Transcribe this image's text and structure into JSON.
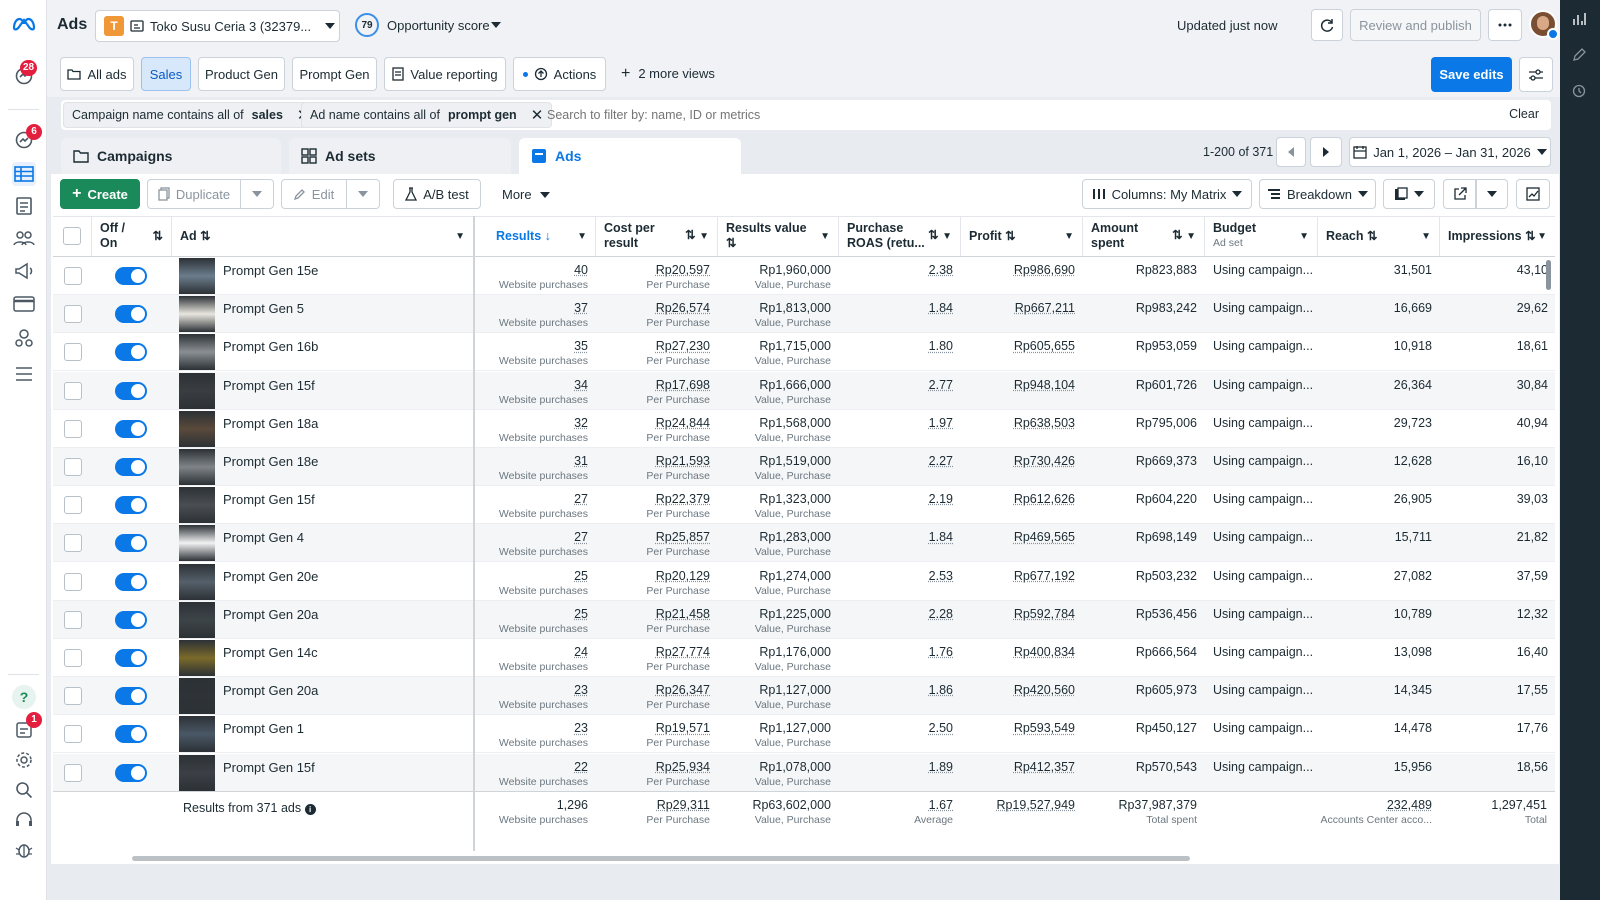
{
  "app": {
    "title": "Ads",
    "account": "Toko Susu Ceria 3 (32379...",
    "account_initial": "T",
    "opportunity_score": "79",
    "opportunity_label": "Opportunity score",
    "updated": "Updated just now",
    "review_label": "Review and publish"
  },
  "leftnav": {
    "notif_badge": "28",
    "msg_badge": "6",
    "bottom_badge": "1"
  },
  "views": {
    "items": [
      "All ads",
      "Sales",
      "Product Gen",
      "Prompt Gen",
      "Value reporting",
      "Actions"
    ],
    "more": "2 more views",
    "save": "Save edits"
  },
  "filters": {
    "chip1_prefix": "Campaign name contains all of",
    "chip1_value": "sales",
    "chip2_prefix": "Ad name contains all of",
    "chip2_value": "prompt gen",
    "search_placeholder": "Search to filter by: name, ID or metrics",
    "clear": "Clear"
  },
  "tabs": {
    "campaigns": "Campaigns",
    "adsets": "Ad sets",
    "ads": "Ads"
  },
  "pager": {
    "range": "1-200 of 371",
    "dates": "Jan 1, 2026 – Jan 31, 2026"
  },
  "toolbar": {
    "create": "Create",
    "duplicate": "Duplicate",
    "edit": "Edit",
    "abtest": "A/B test",
    "more": "More",
    "columns": "Columns: My Matrix",
    "breakdown": "Breakdown"
  },
  "columns": {
    "offon": "Off / On",
    "ad": "Ad",
    "results": "Results",
    "cpr": "Cost per result",
    "value": "Results value",
    "roas": "Purchase ROAS (retu...",
    "profit": "Profit",
    "spent": "Amount spent",
    "budget": "Budget",
    "budget_sub": "Ad set",
    "reach": "Reach",
    "impressions": "Impressions"
  },
  "subs": {
    "results": "Website purchases",
    "cpr": "Per Purchase",
    "value": "Value, Purchase"
  },
  "rows": [
    {
      "name": "Prompt Gen 15e",
      "results": "40",
      "cpr": "Rp20,597",
      "value": "Rp1,960,000",
      "roas": "2.38",
      "profit": "Rp986,690",
      "spent": "Rp823,883",
      "budget": "Using campaign...",
      "reach": "31,501",
      "impressions": "43,10"
    },
    {
      "name": "Prompt Gen 5",
      "results": "37",
      "cpr": "Rp26,574",
      "value": "Rp1,813,000",
      "roas": "1.84",
      "profit": "Rp667,211",
      "spent": "Rp983,242",
      "budget": "Using campaign...",
      "reach": "16,669",
      "impressions": "29,62"
    },
    {
      "name": "Prompt Gen 16b",
      "results": "35",
      "cpr": "Rp27,230",
      "value": "Rp1,715,000",
      "roas": "1.80",
      "profit": "Rp605,655",
      "spent": "Rp953,059",
      "budget": "Using campaign...",
      "reach": "10,918",
      "impressions": "18,61"
    },
    {
      "name": "Prompt Gen 15f",
      "results": "34",
      "cpr": "Rp17,698",
      "value": "Rp1,666,000",
      "roas": "2.77",
      "profit": "Rp948,104",
      "spent": "Rp601,726",
      "budget": "Using campaign...",
      "reach": "26,364",
      "impressions": "30,84"
    },
    {
      "name": "Prompt Gen 18a",
      "results": "32",
      "cpr": "Rp24,844",
      "value": "Rp1,568,000",
      "roas": "1.97",
      "profit": "Rp638,503",
      "spent": "Rp795,006",
      "budget": "Using campaign...",
      "reach": "29,723",
      "impressions": "40,94"
    },
    {
      "name": "Prompt Gen 18e",
      "results": "31",
      "cpr": "Rp21,593",
      "value": "Rp1,519,000",
      "roas": "2.27",
      "profit": "Rp730,426",
      "spent": "Rp669,373",
      "budget": "Using campaign...",
      "reach": "12,628",
      "impressions": "16,10"
    },
    {
      "name": "Prompt Gen 15f",
      "results": "27",
      "cpr": "Rp22,379",
      "value": "Rp1,323,000",
      "roas": "2.19",
      "profit": "Rp612,626",
      "spent": "Rp604,220",
      "budget": "Using campaign...",
      "reach": "26,905",
      "impressions": "39,03"
    },
    {
      "name": "Prompt Gen 4",
      "results": "27",
      "cpr": "Rp25,857",
      "value": "Rp1,283,000",
      "roas": "1.84",
      "profit": "Rp469,565",
      "spent": "Rp698,149",
      "budget": "Using campaign...",
      "reach": "15,711",
      "impressions": "21,82"
    },
    {
      "name": "Prompt Gen 20e",
      "results": "25",
      "cpr": "Rp20,129",
      "value": "Rp1,274,000",
      "roas": "2.53",
      "profit": "Rp677,192",
      "spent": "Rp503,232",
      "budget": "Using campaign...",
      "reach": "27,082",
      "impressions": "37,59"
    },
    {
      "name": "Prompt Gen 20a",
      "results": "25",
      "cpr": "Rp21,458",
      "value": "Rp1,225,000",
      "roas": "2.28",
      "profit": "Rp592,784",
      "spent": "Rp536,456",
      "budget": "Using campaign...",
      "reach": "10,789",
      "impressions": "12,32"
    },
    {
      "name": "Prompt Gen 14c",
      "results": "24",
      "cpr": "Rp27,774",
      "value": "Rp1,176,000",
      "roas": "1.76",
      "profit": "Rp400,834",
      "spent": "Rp666,564",
      "budget": "Using campaign...",
      "reach": "13,098",
      "impressions": "16,40"
    },
    {
      "name": "Prompt Gen 20a",
      "results": "23",
      "cpr": "Rp26,347",
      "value": "Rp1,127,000",
      "roas": "1.86",
      "profit": "Rp420,560",
      "spent": "Rp605,973",
      "budget": "Using campaign...",
      "reach": "14,345",
      "impressions": "17,55"
    },
    {
      "name": "Prompt Gen 1",
      "results": "23",
      "cpr": "Rp19,571",
      "value": "Rp1,127,000",
      "roas": "2.50",
      "profit": "Rp593,549",
      "spent": "Rp450,127",
      "budget": "Using campaign...",
      "reach": "14,478",
      "impressions": "17,76"
    },
    {
      "name": "Prompt Gen 15f",
      "results": "22",
      "cpr": "Rp25,934",
      "value": "Rp1,078,000",
      "roas": "1.89",
      "profit": "Rp412,357",
      "spent": "Rp570,543",
      "budget": "Using campaign...",
      "reach": "15,956",
      "impressions": "18,56"
    }
  ],
  "totals": {
    "label": "Results from 371 ads",
    "results": "1,296",
    "results_sub": "Website purchases",
    "cpr": "Rp29,311",
    "cpr_sub": "Per Purchase",
    "value": "Rp63,602,000",
    "value_sub": "Value, Purchase",
    "roas": "1.67",
    "roas_sub": "Average",
    "profit": "Rp19,527,949",
    "spent": "Rp37,987,379",
    "spent_sub": "Total spent",
    "reach": "232,489",
    "reach_sub": "Accounts Center acco...",
    "impressions": "1,297,451",
    "impressions_sub": "Total"
  },
  "colors": {
    "accent": "#0a78e6",
    "badge": "#e41e3f"
  }
}
